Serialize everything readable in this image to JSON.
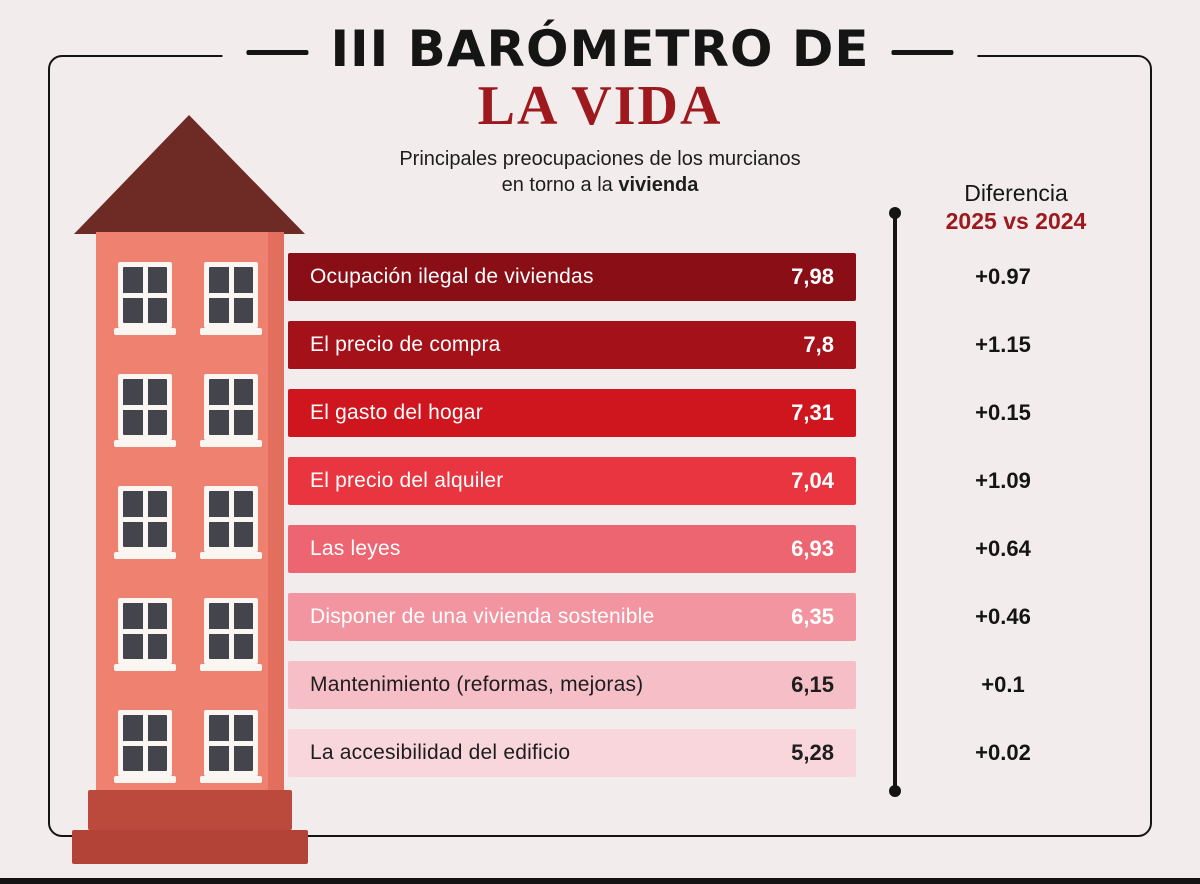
{
  "colors": {
    "background": "#F2EDEC",
    "frame": "#141414",
    "accent_red": "#9D191D",
    "building_wall": "#EE8170",
    "building_roof": "#6E2A24",
    "building_base": "#BB4A3D"
  },
  "header": {
    "title_line1": "III BARÓMETRO DE",
    "title_line2": "LA VIDA",
    "subtitle_line1": "Principales preocupaciones de los murcianos",
    "subtitle_line2_prefix": "en torno a la ",
    "subtitle_line2_bold": "vivienda"
  },
  "diff_header": {
    "line1": "Diferencia",
    "line2": "2025 vs 2024"
  },
  "chart_data": {
    "type": "bar",
    "orientation": "horizontal",
    "title": "III Barómetro de La Vida",
    "subtitle": "Principales preocupaciones de los murcianos en torno a la vivienda",
    "categories": [
      "Ocupación ilegal de viviendas",
      "El precio de compra",
      "El gasto del hogar",
      "El precio del alquiler",
      "Las leyes",
      "Disponer de una vivienda sostenible",
      "Mantenimiento (reformas, mejoras)",
      "La accesibilidad del edificio"
    ],
    "values": [
      7.98,
      7.8,
      7.31,
      7.04,
      6.93,
      6.35,
      6.15,
      5.28
    ],
    "value_labels": [
      "7,98",
      "7,8",
      "7,31",
      "7,04",
      "6,93",
      "6,35",
      "6,15",
      "5,28"
    ],
    "diff_column_label": "Diferencia 2025 vs 2024",
    "diff_values": [
      "+0.97",
      "+1.15",
      "+0.15",
      "+1.09",
      "+0.64",
      "+0.46",
      "+0.1",
      "+0.02"
    ],
    "bar_colors": [
      "#8A0E15",
      "#A41119",
      "#CF151D",
      "#E93540",
      "#EE6572",
      "#F295A0",
      "#F6BEC6",
      "#F9D6DB"
    ],
    "bar_text_colors": [
      "#FFFFFF",
      "#FFFFFF",
      "#FFFFFF",
      "#FFFFFF",
      "#FFFFFF",
      "#FFFFFF",
      "#1D1D1D",
      "#1D1D1D"
    ],
    "xlim": [
      0,
      10
    ],
    "grid": false,
    "legend": false
  }
}
